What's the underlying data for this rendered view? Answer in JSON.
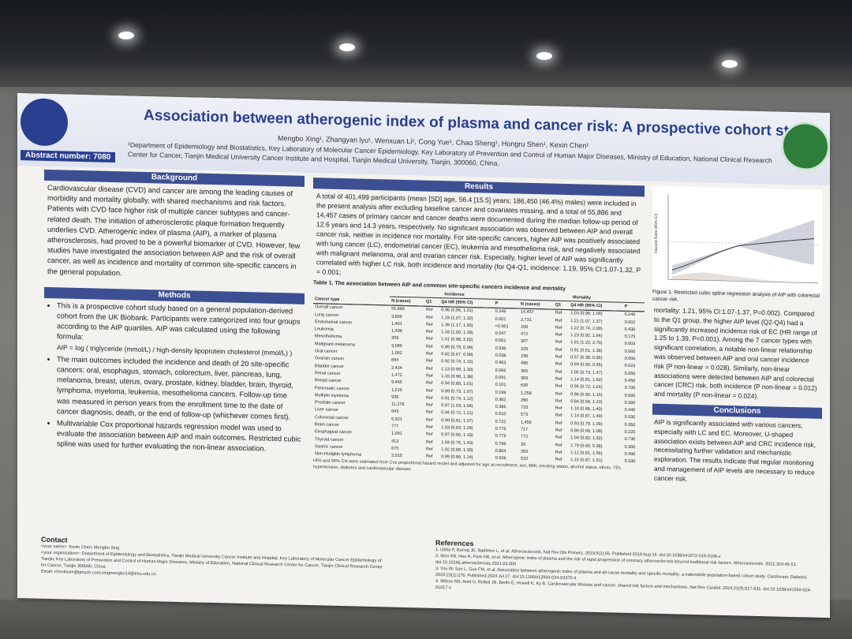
{
  "poster": {
    "title": "Association between atherogenic index of plasma and cancer risk: A prospective cohort study",
    "authors": "Mengbo Xing¹, Zhangyan lyu¹, Wenxuan Li¹, Cong Yue¹, Chao Sheng¹, Hongru Shen¹, Kexin Chen¹",
    "affiliation": "¹Department of Epidemiology and Biostatistics, Key Laboratory of Molecular Cancer Epidemiology, Key Laboratory of Prevention and Control of Human Major Diseases, Ministry of Education, National Clinical Research Center for Cancer, Tianjin Medical University Cancer Institute and Hospital, Tianjin Medical University, Tianjin, 300060, China.",
    "abstract_number": "Abstract number: 7080",
    "background": {
      "heading": "Background",
      "text": "Cardiovascular disease (CVD) and cancer are among the leading causes of morbidity and mortality globally, with shared mechanisms and risk factors. Patients with CVD face higher risk of multiple cancer subtypes and cancer-related death. The initiation of atherosclerotic plaque formation frequently underlies CVD. Atherogenic index of plasma (AIP), a marker of plasma atherosclerosis, had proved to be a powerful biomarker of CVD. However, few studies have investigated the association between AIP and the risk of overall cancer, as well as incidence and mortality of common site-specific cancers in the general population."
    },
    "methods": {
      "heading": "Methods",
      "item1": "This is a prospective cohort study based on a general population-derived cohort from the UK Biobank. Participants were categorized into four groups according to the AIP quartiles. AIP was calculated using the following formula:",
      "formula": "AIP = log ( triglyceride (mmol/L) / high-density lipoprotein cholesterol (mmol/L) )",
      "item2": "The main outcomes included the incidence and death of 20 site-specific cancers: oral, esophagus, stomach, colorectum, liver, pancreas, lung, melanoma, breast, uterus, ovary, prostate, kidney, bladder, brain, thyroid, lymphoma, myeloma, leukemia, mesothelioma cancers. Follow-up time was measured in person years from the enrollment time to the date of cancer diagnosis, death, or the end of follow-up (whichever comes first).",
      "item3": "Multivariable Cox proportional hazards regression model was used to evaluate the association between AIP and main outcomes. Restricted cubic spline was used for further evaluating the non-linear association."
    },
    "results": {
      "heading": "Results",
      "text": "A total of 401,499 participants (mean [SD] age, 56.4 [15.5] years; 186,450 (46.4%) males) were included in the present analysis after excluding baseline cancer and covariates missing, and a total of 55,886 and 14,457 cases of primary cancer and cancer deaths were documented during the median follow-up period of 12.6 years and 14.3 years, respectively. No significant association was observed between AIP and overall cancer risk, neither in incidence nor mortality. For site-specific cancers, higher AIP was positively associated with lung cancer (LC), endometrial cancer (EC), leukemia and mesothelioma risk, and negatively associated with malignant melanoma, oral and ovarian cancer risk. Especially, higher level of AIP was significantly correlated with higher LC risk, both incidence and mortality (for Q4-Q1, incidence: 1.19, 95% CI:1.07-1.32, P = 0.001;",
      "text_cont": "mortality: 1.21, 95% CI:1.07-1.37, P=0.002). Compared to the Q1 group, the higher AIP level (Q2-Q4) had a significantly increased incidence risk of EC (HR range of 1.25 to 1.39, P<0.001). Among the 7 cancer types with significant correlation, a notable non-linear relationship was observed between AIP and oral cancer incidence risk (P non-linear = 0.028). Similarly, non-linear associations were detected between AIP and colorectal cancer (CRC) risk, both incidence (P non-linear = 0.012) and mortality (P non-linear = 0.024)."
    },
    "table": {
      "caption": "Table 1.  The association between AIP and  common site-specific cancers incidence and mortality",
      "group_incidence": "Incidence",
      "group_mortality": "Mortality",
      "headers": [
        "Cancer type",
        "N (cases)",
        "Q1",
        "Q4 HR (95% CI)",
        "P",
        "N (cases)",
        "Q1",
        "Q4 HR (95% CI)",
        "P"
      ],
      "rows": [
        [
          "Overall cancer",
          "55,886",
          "Ref",
          "0.98 (0.96, 1.01)",
          "0.246",
          "14,457",
          "Ref",
          "1.03 (0.98, 1.09)",
          "0.240"
        ],
        [
          "Lung cancer",
          "3,806",
          "Ref",
          "1.19 (1.07, 1.32)",
          "0.001",
          "2,731",
          "Ref",
          "1.21 (1.07, 1.37)",
          "0.002"
        ],
        [
          "Endometrial cancer",
          "1,461",
          "Ref",
          "1.39 (1.17, 1.65)",
          "<0.001",
          "168",
          "Ref",
          "1.22 (0.74, 2.00)",
          "0.430"
        ],
        [
          "Leukemia",
          "1,498",
          "Ref",
          "1.18 (1.00, 1.39)",
          "0.047",
          "472",
          "Ref",
          "1.23 (0.92, 1.64)",
          "0.170"
        ],
        [
          "Mesothelioma",
          "359",
          "Ref",
          "1.41 (0.98, 2.02)",
          "0.061",
          "307",
          "Ref",
          "1.81 (1.22, 2.70)",
          "0.003"
        ],
        [
          "Malignant melanoma",
          "3,080",
          "Ref",
          "0.89 (0.79, 0.99)",
          "0.036",
          "229",
          "Ref",
          "0.91 (0.61, 1.38)",
          "0.660"
        ],
        [
          "Oral cancer",
          "1,062",
          "Ref",
          "0.82 (0.67, 0.99)",
          "0.038",
          "198",
          "Ref",
          "0.57 (0.38, 0.85)",
          "0.006"
        ],
        [
          "Ovarian cancer",
          "894",
          "Ref",
          "0.92 (0.74, 1.15)",
          "0.463",
          "490",
          "Ref",
          "0.69 (0.50, 0.95)",
          "0.023"
        ],
        [
          "Bladder cancer",
          "2,424",
          "Ref",
          "1.13 (0.99, 1.30)",
          "0.066",
          "366",
          "Ref",
          "1.05 (0.73, 1.47)",
          "0.850"
        ],
        [
          "Renal cancer",
          "1,472",
          "Ref",
          "1.16 (0.98, 1.38)",
          "0.091",
          "393",
          "Ref",
          "1.14 (0.81, 1.62)",
          "0.450"
        ],
        [
          "Breast cancer",
          "9,465",
          "Ref",
          "0.94 (0.88, 1.01)",
          "0.101",
          "630",
          "Ref",
          "0.95 (0.72, 1.24)",
          "0.700"
        ],
        [
          "Pancreatic cancer",
          "1,216",
          "Ref",
          "0.89 (0.73, 1.07)",
          "0.199",
          "1,258",
          "Ref",
          "0.96 (0.80, 1.15)",
          "0.660"
        ],
        [
          "Multiple myeloma",
          "935",
          "Ref",
          "0.91 (0.74, 1.12)",
          "0.382",
          "280",
          "Ref",
          "0.84 (0.58, 1.23)",
          "0.380"
        ],
        [
          "Prostate cancer",
          "11,278",
          "Ref",
          "0.97 (1.03, 1.04)",
          "0.386",
          "733",
          "Ref",
          "1.10 (0.86, 1.40)",
          "0.440"
        ],
        [
          "Liver cancer",
          "643",
          "Ref",
          "0.94 (0.72, 1.21)",
          "0.610",
          "573",
          "Ref",
          "1.14 (0.87, 1.49)",
          "0.330"
        ],
        [
          "Colorectal cancer",
          "5,921",
          "Ref",
          "0.99 (0.91, 1.07)",
          "0.722",
          "1,456",
          "Ref",
          "0.93 (0.79, 1.09)",
          "0.350"
        ],
        [
          "Brain cancer",
          "777",
          "Ref",
          "1.03 (0.83, 1.29)",
          "0.775",
          "717",
          "Ref",
          "0.86 (0.68, 1.09)",
          "0.220"
        ],
        [
          "Esophageal cancer",
          "1,091",
          "Ref",
          "0.97 (0.80, 1.18)",
          "0.776",
          "772",
          "Ref",
          "1.04 (0.82, 1.32)",
          "0.730"
        ],
        [
          "Thyroid cancer",
          "413",
          "Ref",
          "1.04 (0.76, 1.43)",
          "0.799",
          "33",
          "Ref",
          "1.79 (0.60, 5.38)",
          "0.300"
        ],
        [
          "Gastric cancer",
          "675",
          "Ref",
          "1.02 (0.80, 1.30)",
          "0.864",
          "393",
          "Ref",
          "1.12 (0.81, 1.56)",
          "0.490"
        ],
        [
          "Non-Hodgkin lymphoma",
          "2,010",
          "Ref",
          "0.99 (0.86, 1.14)",
          "0.928",
          "510",
          "Ref",
          "1.15 (0.87, 1.51)",
          "0.330"
        ]
      ],
      "note": "HRs and 95% CIs were estimated from Cox proportional hazard model and adjusted for age at recruitment, sex, BMI, smoking status, alcohol status, ethnic, TDI, hypertension, diabetes and cardiovascular disease."
    },
    "figure": {
      "caption": "Figure 1. Restricted cubic spline regression analysis of AIP with colorectal cancer risk.",
      "ylabel": "Hazard Ratio (95% CI)"
    },
    "conclusions": {
      "heading": "Conclusions",
      "text": "AIP is significantly associated with various cancers, especially with LC and EC. Moreover, U-shaped association exists between AIP and CRC incidence risk, necessitating further validation and mechanistic exploration. The results indicate that regular monitoring and management of AIP levels are necessary to reduce cancer risk."
    },
    "contact": {
      "heading": "Contact",
      "line1": "<your name>: Kexin Chen; Mengbo Xing",
      "line2": "<your organization>: Department of Epidemiology and Biostatistics, Tianjin Medical University Cancer Institute and Hospital, Key Laboratory of Molecular Cancer Epidemiology of Tianjin, Key Laboratory of Prevention and Control of Human Major Diseases, Ministry of Education, National Clinical Research Center for Cancer, Tianjin Clinical Research Center for Cancer, Tianjin 300060, China",
      "line3": "Email: chenkexin@tjmuch.com;xingmengbo14@tmu.edu.cn"
    },
    "references": {
      "heading": "References",
      "items": [
        "1. Libby P, Buring JE, Badimon L, et al. Atherosclerosis. Nat Rev Dis Primers. 2019;5(1):56. Published 2019 Aug 16. doi:10.1038/s41572-019-0106-z",
        "2. Won KB, Heo R, Park HB, et al. Atherogenic index of plasma and the risk of rapid progression of coronary atherosclerosis beyond traditional risk factors. Atherosclerosis. 2021;324:46-51. doi:10.1016/j.atherosclerosis.2021.03.009",
        "3. You W, Sun L, Guo FM, et al. Association between atherogenic index of plasma and all-cause mortality and specific-mortality: a nationwide population-based cohort study. Cardiovasc Diabetol. 2024;23(1):276. Published 2024 Jul 27. doi:10.1186/s12933-024-02370-4",
        "4. Wilcox NS, Amit U, Reibel JB, Berlin E, Howell K, Ky B. Cardiovascular disease and cancer: shared risk factors and mechanisms. Nat Rev Cardiol. 2024;21(9):617-631. doi:10.1038/s41569-024-01017-x"
      ]
    }
  }
}
